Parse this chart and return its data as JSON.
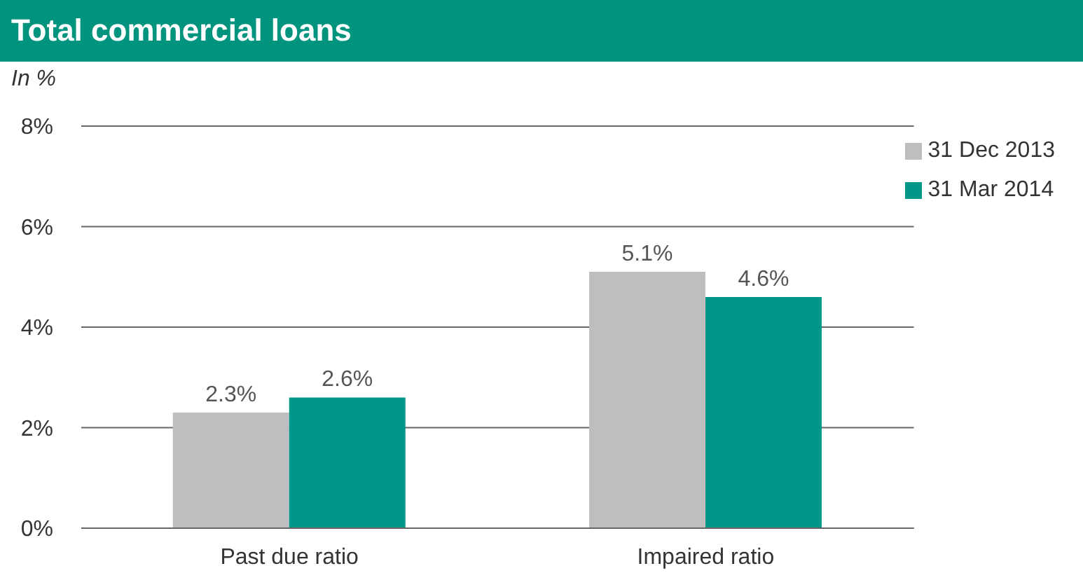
{
  "chart_data": {
    "type": "bar",
    "title": "Total commercial loans",
    "ylabel": "In %",
    "categories": [
      "Past due ratio",
      "Impaired ratio"
    ],
    "series": [
      {
        "name": "31 Dec 2013",
        "color": "#bcbec0",
        "values": [
          2.3,
          5.1
        ],
        "value_labels": [
          "2.3%",
          "5.1%"
        ]
      },
      {
        "name": "31 Mar 2014",
        "color": "#00968a",
        "values": [
          2.6,
          4.6
        ],
        "value_labels": [
          "2.6%",
          "4.6%"
        ]
      }
    ],
    "ylim": [
      0,
      8
    ],
    "yticks": [
      {
        "value": 0,
        "label": "0%"
      },
      {
        "value": 2,
        "label": "2%"
      },
      {
        "value": 4,
        "label": "4%"
      },
      {
        "value": 6,
        "label": "6%"
      },
      {
        "value": 8,
        "label": "8%"
      }
    ],
    "grid": "y",
    "legend": "top right"
  }
}
